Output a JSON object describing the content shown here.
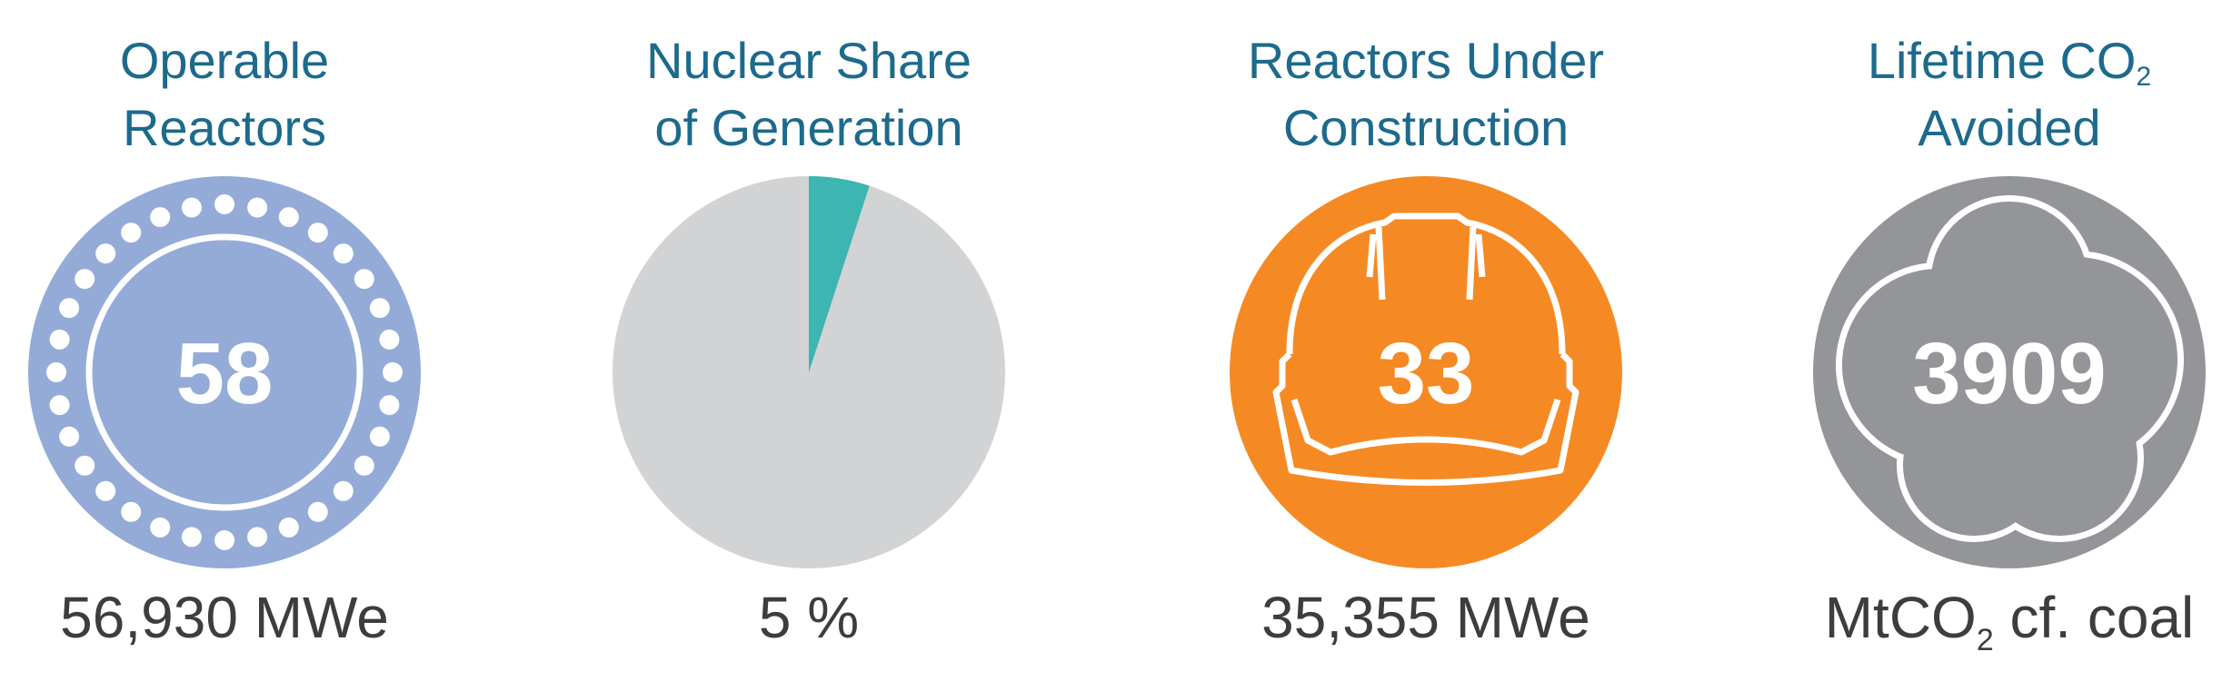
{
  "stats": [
    {
      "title_line1": "Operable",
      "title_line2": "Reactors",
      "value": "58",
      "caption": "56,930 MWe",
      "color": "#94abd8",
      "icon": "reactor-ring-icon"
    },
    {
      "title_line1": "Nuclear Share",
      "title_line2": "of Generation",
      "share_percent": 5,
      "caption": "5 %",
      "color": "#3db5b0",
      "background_color": "#d1d3d4",
      "icon": "pie-chart"
    },
    {
      "title_line1": "Reactors Under",
      "title_line2": "Construction",
      "value": "33",
      "caption": "35,355 MWe",
      "color": "#f58a24",
      "icon": "hard-hat-icon"
    },
    {
      "title_line1": "Lifetime CO",
      "title_sub": "2",
      "title_line2": "Avoided",
      "value": "3909",
      "caption_pre": "MtCO",
      "caption_sub": "2",
      "caption_post": " cf. coal",
      "color": "#939598",
      "icon": "cloud-icon"
    }
  ]
}
